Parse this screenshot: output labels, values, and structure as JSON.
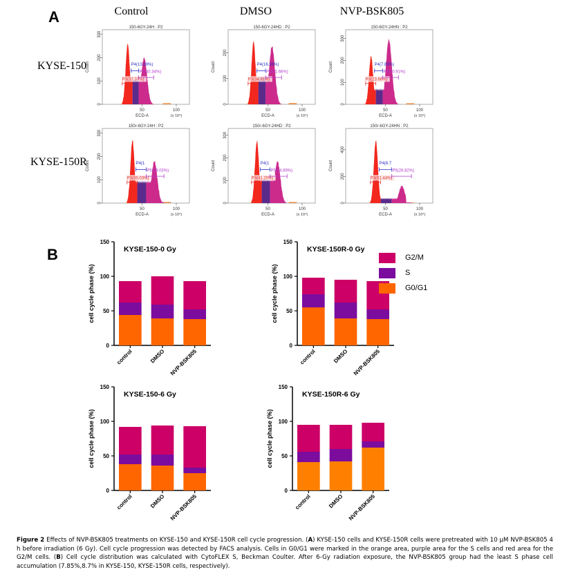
{
  "figure_label": "Figure 2",
  "panel_a": {
    "letter": "A",
    "columns": [
      "Control",
      "DMSO",
      "NVP-BSK805"
    ],
    "rows": [
      "KYSE-150",
      "KYSE-150R"
    ],
    "x_axis_label": "ECD-A",
    "x_axis_unit": "(x 10⁴)",
    "y_axis_label": "Count",
    "x_ticks": [
      "50",
      "100"
    ],
    "histograms": [
      {
        "title": "150-6GY-24H : P2",
        "y_ticks": [
          "0",
          "100",
          "200",
          "300"
        ],
        "ymax": 320,
        "gates": {
          "P3": "P3(37.37%)",
          "P4": "P4(13.69%)",
          "P5": "P5(40.34%)"
        },
        "g1_peak": 29,
        "g1_height": 260,
        "g2_peak": 53,
        "g2_height": 200,
        "s_level": 110
      },
      {
        "title": "150-6GY-24HD : P2",
        "y_ticks": [
          "0",
          "100",
          "200"
        ],
        "ymax": 290,
        "gates": {
          "P3": "P3(34.91%)",
          "P4": "P4(16.36%)",
          "P5": "P5(41.66%)"
        },
        "g1_peak": 29,
        "g1_height": 245,
        "g2_peak": 56,
        "g2_height": 225,
        "s_level": 110
      },
      {
        "title": "150-6GY-24HN : P2",
        "y_ticks": [
          "0",
          "100",
          "200",
          "300"
        ],
        "ymax": 340,
        "gates": {
          "P3": "P3(23.66%)",
          "P4": "P4(7.85%)",
          "P5": "P5(60.91%)"
        },
        "g1_peak": 29,
        "g1_height": 220,
        "g2_peak": 55,
        "g2_height": 295,
        "s_level": 70
      },
      {
        "title": "150r-6GY-24H : P2",
        "y_ticks": [
          "0",
          "100",
          "200",
          "300"
        ],
        "ymax": 320,
        "gates": {
          "P3": "P3(39.03%)",
          "P4": "P4(1",
          "P5": "P5(39.03%)"
        },
        "g1_peak": 36,
        "g1_height": 270,
        "g2_peak": 68,
        "g2_height": 180,
        "s_level": 95
      },
      {
        "title": "150r-6GY-24HD : P2",
        "y_ticks": [
          "0",
          "100",
          "200",
          "300"
        ],
        "ymax": 330,
        "gates": {
          "P3": "P3(41.20%)",
          "P4": "P4(1",
          "P5": "P5(34.89%)"
        },
        "g1_peak": 34,
        "g1_height": 275,
        "g2_peak": 64,
        "g2_height": 185,
        "s_level": 105
      },
      {
        "title": "150r-6GY-24HN : P2",
        "y_ticks": [
          "0",
          "200",
          "400"
        ],
        "ymax": 560,
        "gates": {
          "P3": "P3(61.44%)",
          "P4": "P4(8.7",
          "P5": "P5(26.82%)"
        },
        "g1_peak": 36,
        "g1_height": 470,
        "g2_peak": 74,
        "g2_height": 130,
        "s_level": 35
      }
    ]
  },
  "panel_b": {
    "letter": "B",
    "legend": [
      {
        "label": "G2/M",
        "color": "#CC0066"
      },
      {
        "label": "S",
        "color": "#7B0C9E"
      },
      {
        "label": "G0/G1",
        "color": "#FF6600"
      }
    ]
  },
  "chart_data": [
    {
      "type": "bar",
      "stacked": true,
      "title": "KYSE-150-0 Gy",
      "ylabel": "cell cycle phase (%)",
      "xlabel": "",
      "categories": [
        "control",
        "DMSO",
        "NVP-BSK805"
      ],
      "ylim": [
        0,
        150
      ],
      "yticks": [
        "0",
        "50",
        "100",
        "150"
      ],
      "series": [
        {
          "name": "G0/G1",
          "color": "#FF6600",
          "values": [
            44,
            39,
            38
          ]
        },
        {
          "name": "S",
          "color": "#7B0C9E",
          "values": [
            18,
            20,
            14
          ]
        },
        {
          "name": "G2/M",
          "color": "#CC0066",
          "values": [
            31,
            41,
            41
          ]
        }
      ]
    },
    {
      "type": "bar",
      "stacked": true,
      "title": "KYSE-150R-0 Gy",
      "ylabel": "cell cycle phase (%)",
      "xlabel": "",
      "categories": [
        "control",
        "DMSO",
        "NVP-BSK805"
      ],
      "ylim": [
        0,
        150
      ],
      "yticks": [
        "0",
        "50",
        "100",
        "150"
      ],
      "legend": "right",
      "series": [
        {
          "name": "G0/G1",
          "color": "#FF6600",
          "values": [
            55,
            39,
            38
          ]
        },
        {
          "name": "S",
          "color": "#7B0C9E",
          "values": [
            19,
            23,
            14
          ]
        },
        {
          "name": "G2/M",
          "color": "#CC0066",
          "values": [
            24,
            33,
            41
          ]
        }
      ]
    },
    {
      "type": "bar",
      "stacked": true,
      "title": "KYSE-150-6 Gy",
      "ylabel": "cell cycle phase (%)",
      "xlabel": "",
      "categories": [
        "control",
        "DMSO",
        "NVP-BSK805"
      ],
      "ylim": [
        0,
        150
      ],
      "yticks": [
        "0",
        "50",
        "100",
        "150"
      ],
      "series": [
        {
          "name": "G0/G1",
          "color": "#FF6600",
          "values": [
            38,
            36,
            25
          ]
        },
        {
          "name": "S",
          "color": "#7B0C9E",
          "values": [
            14,
            16,
            8
          ]
        },
        {
          "name": "G2/M",
          "color": "#CC0066",
          "values": [
            40,
            42,
            60
          ]
        }
      ]
    },
    {
      "type": "bar",
      "stacked": true,
      "title": "KYSE-150R-6 Gy",
      "ylabel": "cell cycle phase (%)",
      "xlabel": "",
      "categories": [
        "control",
        "DMSO",
        "NVP-BSK805"
      ],
      "ylim": [
        0,
        150
      ],
      "yticks": [
        "0",
        "50",
        "100",
        "150"
      ],
      "series": [
        {
          "name": "G0/G1",
          "color": "#FF8000",
          "values": [
            41,
            42,
            62
          ]
        },
        {
          "name": "S",
          "color": "#7B0C9E",
          "values": [
            15,
            18,
            9
          ]
        },
        {
          "name": "G2/M",
          "color": "#CC0066",
          "values": [
            39,
            35,
            27
          ]
        }
      ]
    }
  ],
  "caption": {
    "label": "Figure 2",
    "part1": " Effects of NVP-BSK805 treatments on KYSE-150 and KYSE-150R cell cycle progression. (",
    "a": "A",
    "part2": ") KYSE-150 cells and KYSE-150R cells were pretreated with 10 µM NVP-BSK805 4 h before irradiation (6 Gy). Cell cycle progression was detected by FACS analysis. Cells in G0/G1 were marked in the orange area, purple area for the S cells and red area for the G2/M cells. (",
    "b": "B",
    "part3": ") Cell cycle distribution was calculated with CytoFLEX S, Beckman Coulter. After 6-Gy radiation exposure, the NVP-BSK805 group had the least S phase cell accumulation (7.85%,8.7% in KYSE-150, KYSE-150R cells, respectively)."
  }
}
